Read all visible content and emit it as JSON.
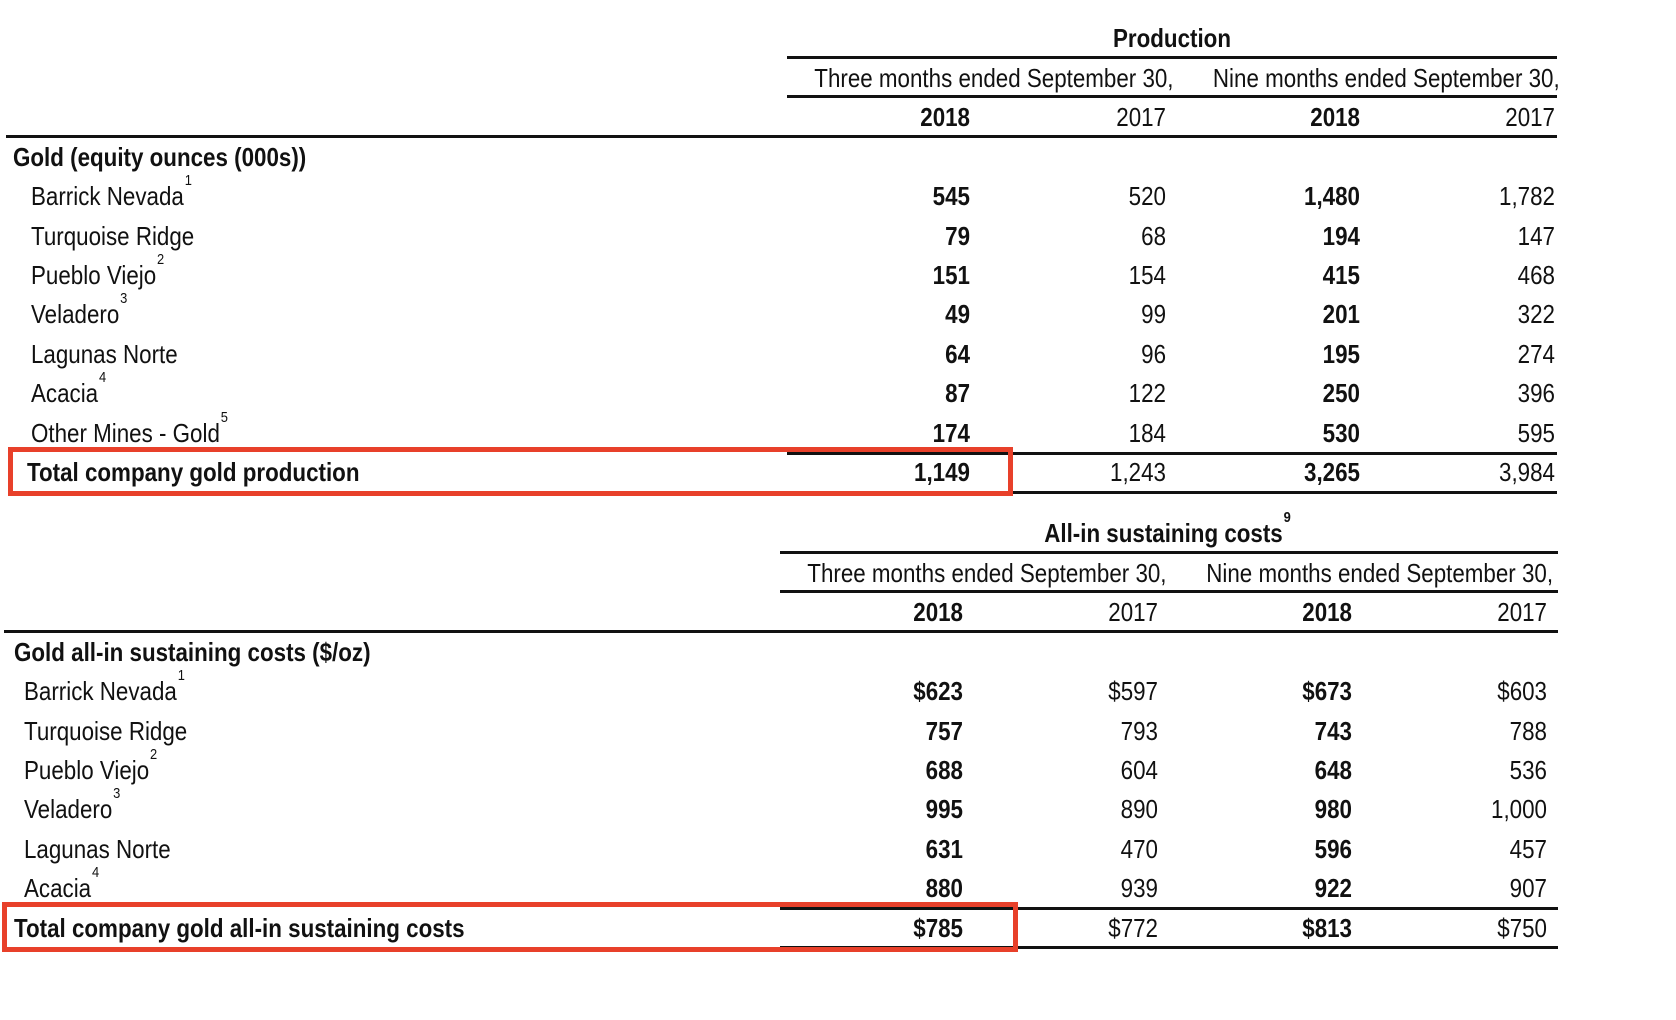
{
  "production": {
    "title": "Production",
    "period_three": "Three months ended September 30,",
    "period_nine": "Nine months ended September 30,",
    "year_bold": "2018",
    "year_regular": "2017",
    "section_label": "Gold (equity ounces (000s))",
    "rows": [
      {
        "label": "Barrick Nevada",
        "note": "1",
        "q3_2018": "545",
        "q3_2017": "520",
        "ytd_2018": "1,480",
        "ytd_2017": "1,782"
      },
      {
        "label": "Turquoise Ridge",
        "note": "",
        "q3_2018": "79",
        "q3_2017": "68",
        "ytd_2018": "194",
        "ytd_2017": "147"
      },
      {
        "label": "Pueblo Viejo",
        "note": "2",
        "q3_2018": "151",
        "q3_2017": "154",
        "ytd_2018": "415",
        "ytd_2017": "468"
      },
      {
        "label": "Veladero",
        "note": "3",
        "q3_2018": "49",
        "q3_2017": "99",
        "ytd_2018": "201",
        "ytd_2017": "322"
      },
      {
        "label": "Lagunas Norte",
        "note": "",
        "q3_2018": "64",
        "q3_2017": "96",
        "ytd_2018": "195",
        "ytd_2017": "274"
      },
      {
        "label": "Acacia",
        "note": "4",
        "q3_2018": "87",
        "q3_2017": "122",
        "ytd_2018": "250",
        "ytd_2017": "396"
      },
      {
        "label": "Other Mines - Gold",
        "note": "5",
        "q3_2018": "174",
        "q3_2017": "184",
        "ytd_2018": "530",
        "ytd_2017": "595"
      }
    ],
    "total": {
      "label": "Total company gold production",
      "q3_2018": "1,149",
      "q3_2017": "1,243",
      "ytd_2018": "3,265",
      "ytd_2017": "3,984"
    }
  },
  "aisc": {
    "title": "All-in sustaining costs",
    "title_note": "9",
    "period_three": "Three months ended September 30,",
    "period_nine": "Nine months ended September 30,",
    "year_bold": "2018",
    "year_regular": "2017",
    "section_label": "Gold all-in sustaining costs ($/oz)",
    "rows": [
      {
        "label": "Barrick Nevada",
        "note": "1",
        "q3_2018": "$623",
        "q3_2017": "$597",
        "ytd_2018": "$673",
        "ytd_2017": "$603"
      },
      {
        "label": "Turquoise Ridge",
        "note": "",
        "q3_2018": "757",
        "q3_2017": "793",
        "ytd_2018": "743",
        "ytd_2017": "788"
      },
      {
        "label": "Pueblo Viejo",
        "note": "2",
        "q3_2018": "688",
        "q3_2017": "604",
        "ytd_2018": "648",
        "ytd_2017": "536"
      },
      {
        "label": "Veladero",
        "note": "3",
        "q3_2018": "995",
        "q3_2017": "890",
        "ytd_2018": "980",
        "ytd_2017": "1,000"
      },
      {
        "label": "Lagunas Norte",
        "note": "",
        "q3_2018": "631",
        "q3_2017": "470",
        "ytd_2018": "596",
        "ytd_2017": "457"
      },
      {
        "label": "Acacia",
        "note": "4",
        "q3_2018": "880",
        "q3_2017": "939",
        "ytd_2018": "922",
        "ytd_2017": "907"
      }
    ],
    "total": {
      "label": "Total company gold all-in sustaining costs",
      "q3_2018": "$785",
      "q3_2017": "$772",
      "ytd_2018": "$813",
      "ytd_2017": "$750"
    }
  },
  "highlight_color": "#e8402a",
  "text_color": "#111111"
}
